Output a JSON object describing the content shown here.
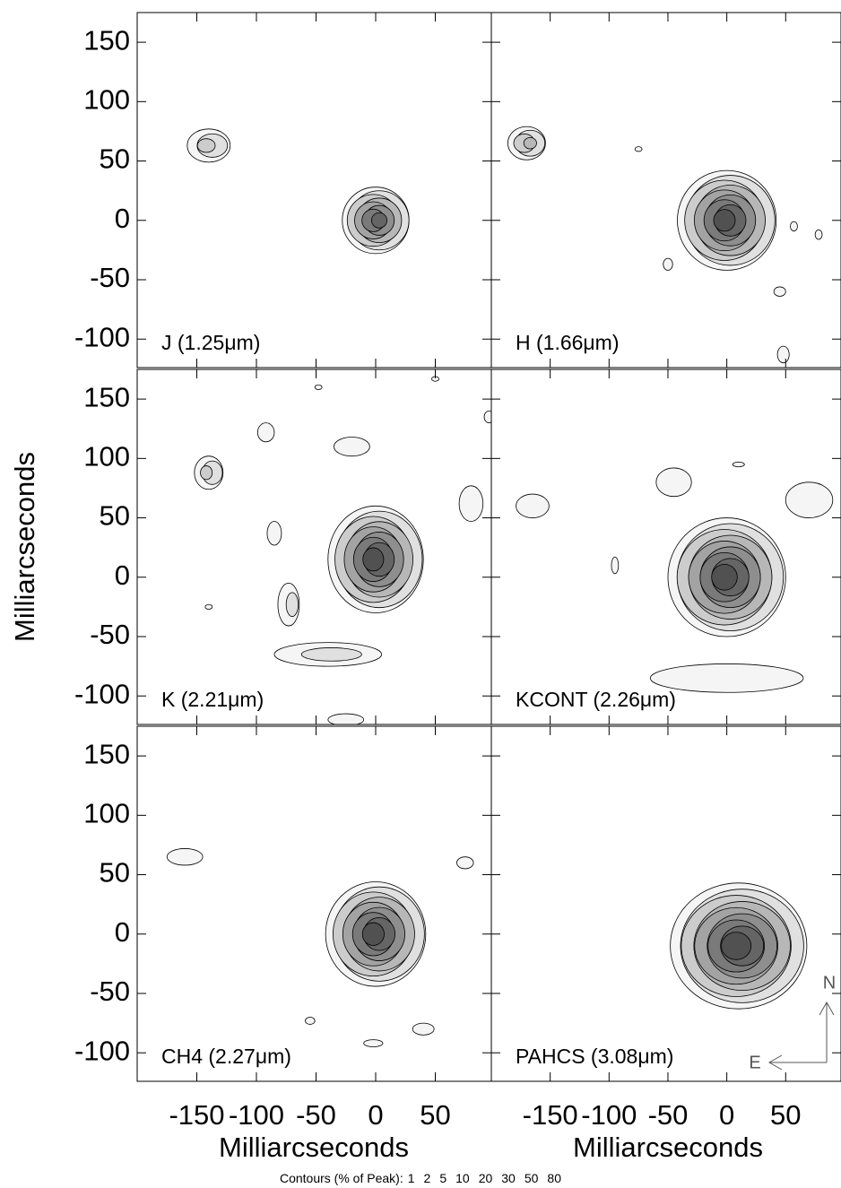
{
  "chart_data": {
    "type": "contour",
    "xlabel": "Milliarcseconds",
    "ylabel": "Milliarcseconds",
    "xlim": [
      -200,
      97
    ],
    "ylim": [
      -124,
      175
    ],
    "xticks": [
      -150,
      -100,
      -50,
      0,
      50
    ],
    "yticks": [
      -100,
      -50,
      0,
      50,
      100,
      150
    ],
    "panels": [
      {
        "label": "J (1.25μm)"
      },
      {
        "label": "H (1.66μm)"
      },
      {
        "label": "K (2.21μm)"
      },
      {
        "label": "KCONT (2.26μm)"
      },
      {
        "label": "CH4 (2.27μm)"
      },
      {
        "label": "PAHCS (3.08μm)"
      }
    ],
    "contour_note": "Contours (% of Peak):",
    "contour_levels": [
      1,
      2,
      5,
      10,
      20,
      30,
      50,
      80
    ],
    "compass": {
      "north": "N",
      "east": "E"
    }
  }
}
